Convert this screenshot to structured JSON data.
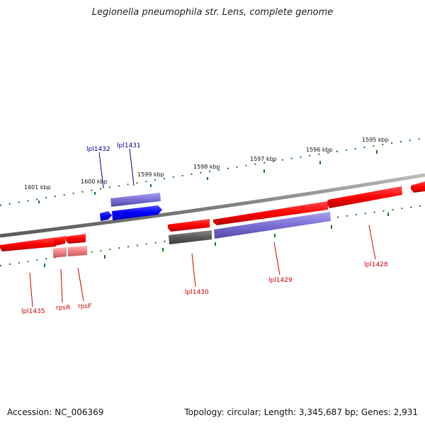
{
  "header": {
    "title": "Legionella pneumophila str. Lens, complete genome"
  },
  "footer": {
    "accession": "Accession: NC_006369",
    "summary": "Topology: circular; Length: 3,345,687 bp; Genes: 2,931"
  },
  "colors": {
    "backbone": "#808080",
    "tick": "#1a7a1a",
    "gene_forward": "#ee0000",
    "gene_reverse_label": "#000099",
    "cds_red": "#ff1a1a",
    "cds_blue": "#1a1aff",
    "cds_violet": "#7b6fd6",
    "cds_gray": "#5a5a5a",
    "cds_pink": "#f08080",
    "label_red": "#cc0000",
    "label_blue": "#000099"
  },
  "ruler": {
    "labels": [
      "1601 kbp",
      "1600 kbp",
      "1599 kbp",
      "1598 kbp",
      "1597 kbp",
      "1596 kbp",
      "1595 kbp"
    ]
  },
  "genes": [
    {
      "name": "lpl1432",
      "color": "label_blue"
    },
    {
      "name": "lpl1431",
      "color": "label_blue"
    },
    {
      "name": "lpl1435",
      "color": "label_red"
    },
    {
      "name": "rpsR",
      "color": "label_red"
    },
    {
      "name": "rpsF",
      "color": "label_red"
    },
    {
      "name": "lpl1430",
      "color": "label_red"
    },
    {
      "name": "lpl1429",
      "color": "label_red"
    },
    {
      "name": "lpl1428",
      "color": "label_red"
    }
  ]
}
